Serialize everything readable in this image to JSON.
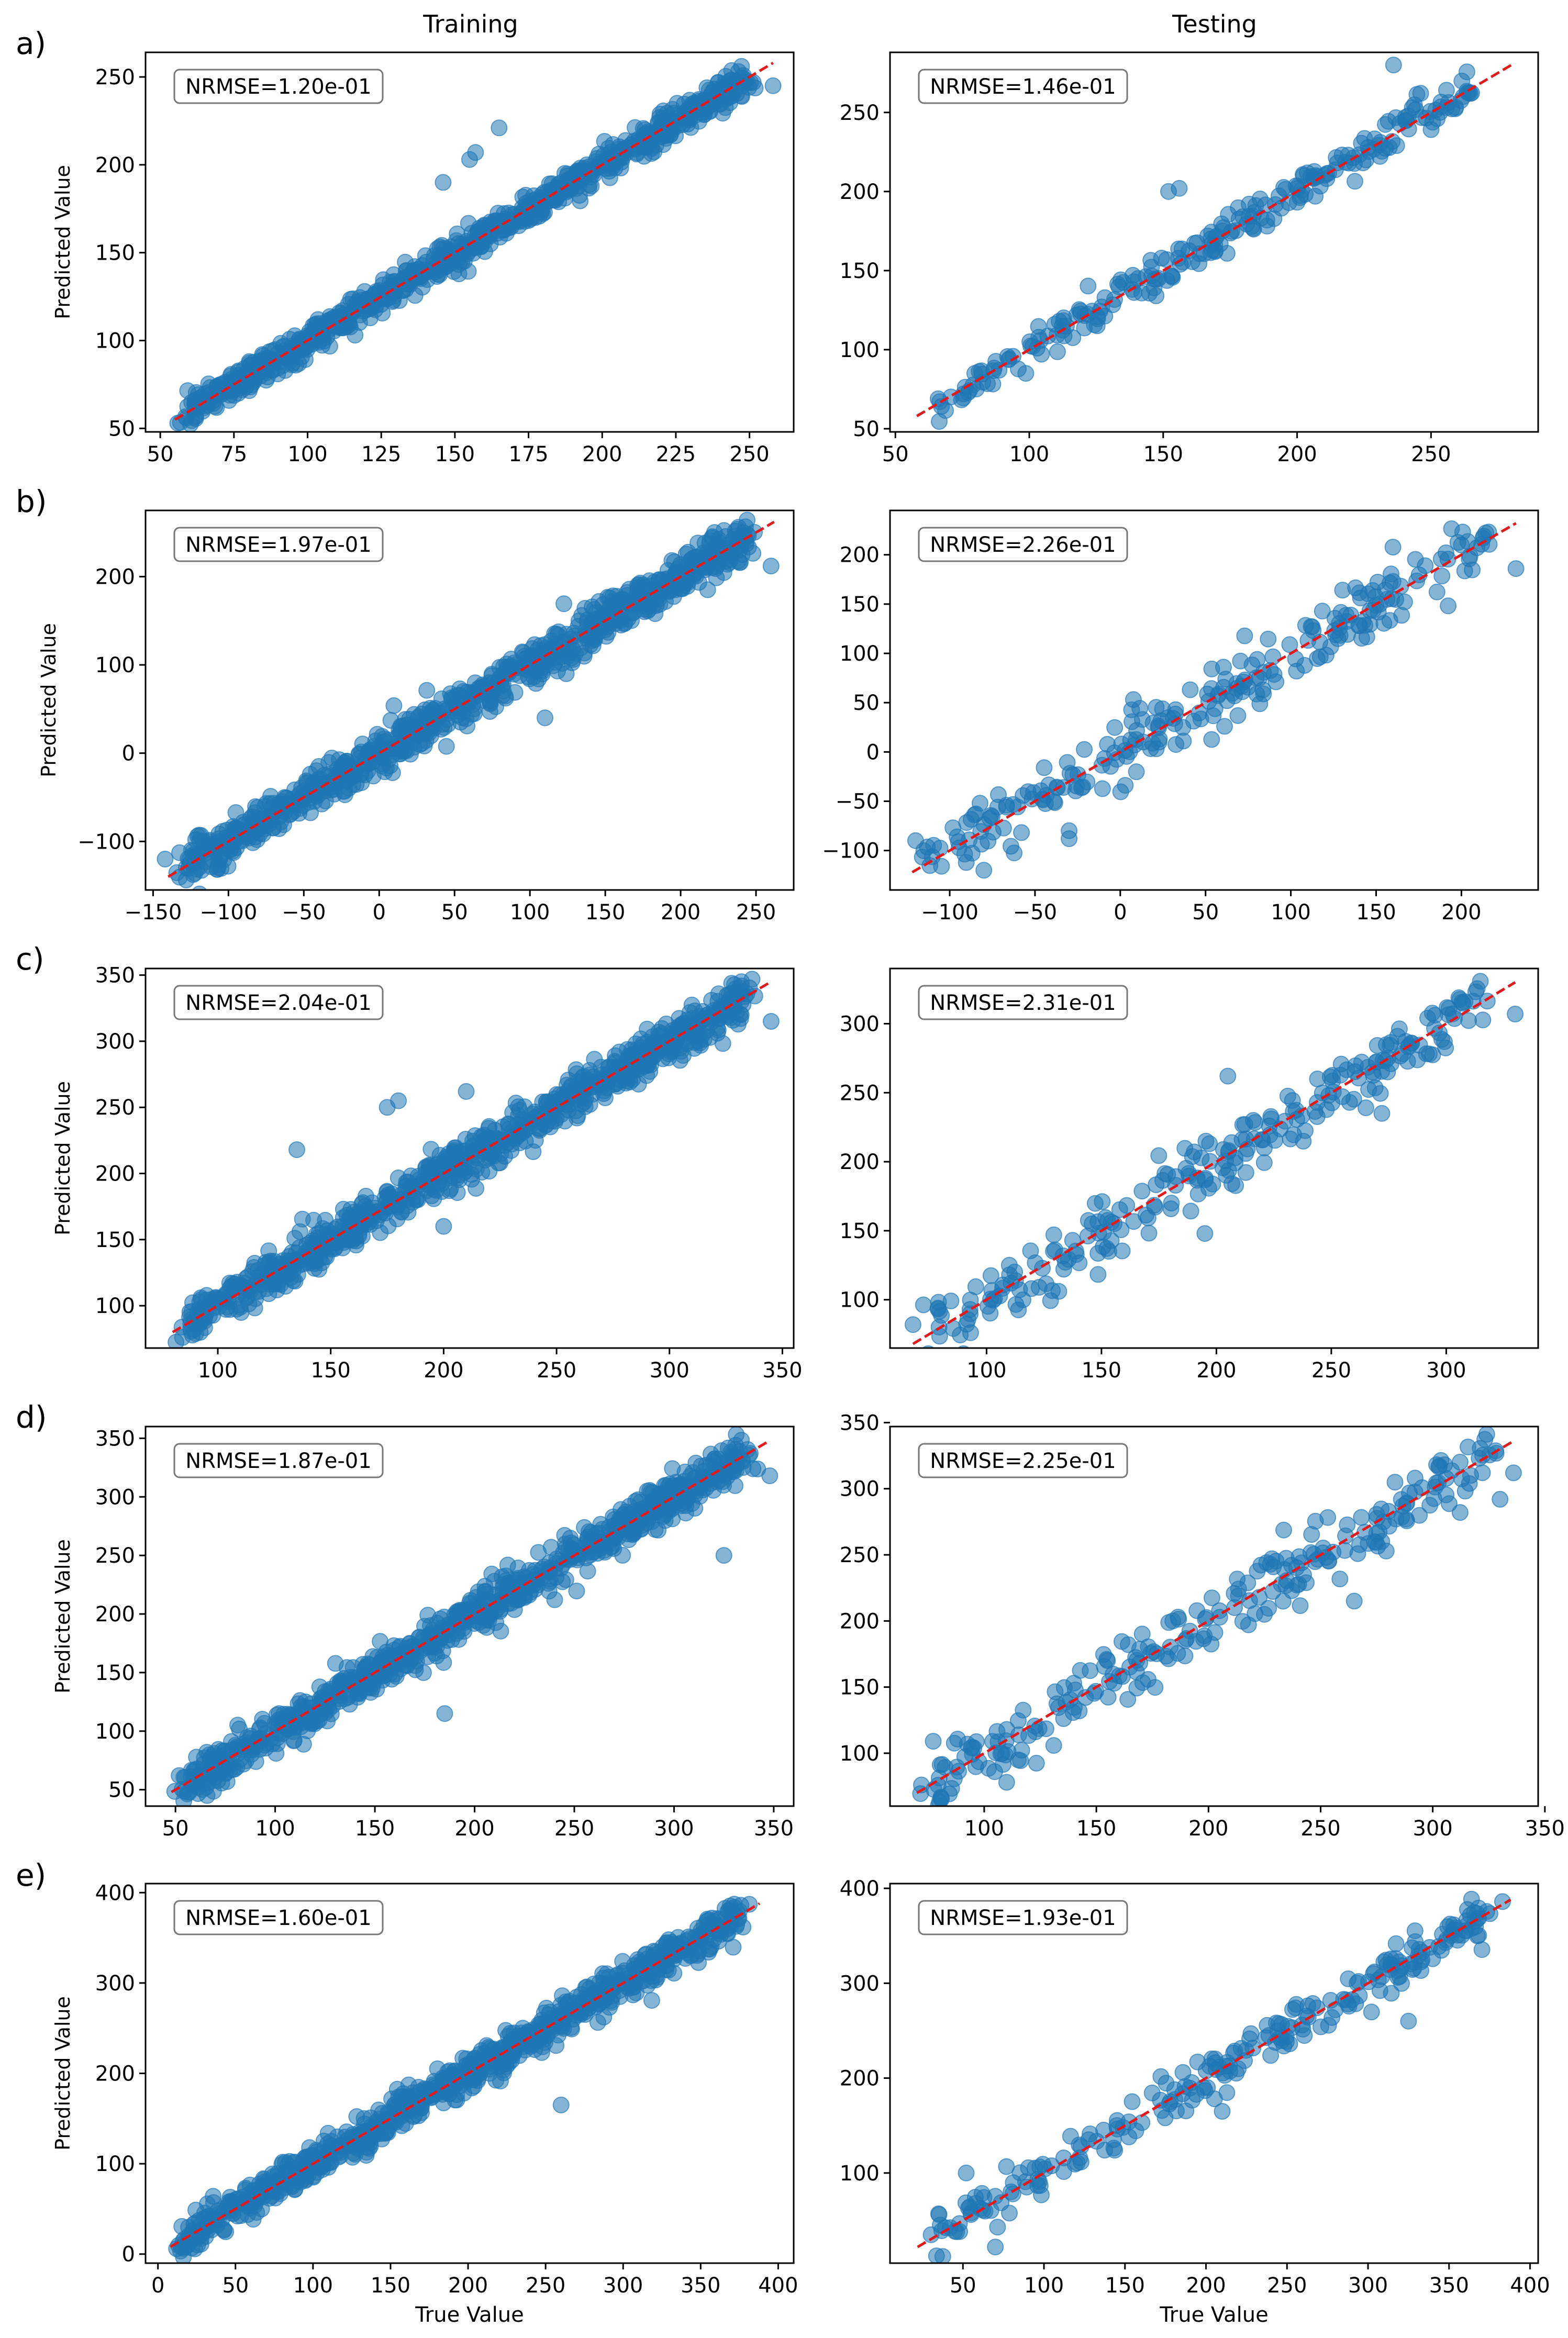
{
  "figure": {
    "column_titles": [
      "Training",
      "Testing"
    ],
    "row_labels": [
      "a)",
      "b)",
      "c)",
      "d)",
      "e)"
    ],
    "ylabel": "Predicted Value",
    "xlabel": "True Value"
  },
  "colors": {
    "point_fill": "#1f77b4",
    "diagonal_line": "#e31a1c",
    "axis": "#000000",
    "background": "#ffffff"
  },
  "chart_data": [
    {
      "type": "scatter",
      "row": "a)",
      "column": "Training",
      "annotation": "NRMSE=1.20e-01",
      "xlim": [
        45,
        265
      ],
      "ylim": [
        48,
        264
      ],
      "xticks": [
        50,
        75,
        100,
        125,
        150,
        175,
        200,
        225,
        250
      ],
      "yticks": [
        50,
        100,
        150,
        200,
        250
      ],
      "diag": [
        55,
        258
      ],
      "n_points": 900,
      "noise": 4.5,
      "outliers": [
        [
          146,
          190
        ],
        [
          155,
          203
        ],
        [
          157,
          207
        ],
        [
          165,
          221
        ],
        [
          258,
          245
        ]
      ],
      "ylabel": "Predicted Value",
      "xlabel": ""
    },
    {
      "type": "scatter",
      "row": "a)",
      "column": "Testing",
      "annotation": "NRMSE=1.46e-01",
      "xlim": [
        48,
        290
      ],
      "ylim": [
        48,
        288
      ],
      "xticks": [
        50,
        100,
        150,
        200,
        250
      ],
      "yticks": [
        50,
        100,
        150,
        200,
        250
      ],
      "diag": [
        58,
        280
      ],
      "n_points": 240,
      "noise": 6,
      "outliers": [
        [
          152,
          200
        ],
        [
          156,
          202
        ],
        [
          236,
          280
        ],
        [
          262,
          260
        ],
        [
          243,
          253
        ]
      ],
      "ylabel": "",
      "xlabel": ""
    },
    {
      "type": "scatter",
      "row": "b)",
      "column": "Training",
      "annotation": "NRMSE=1.97e-01",
      "xlim": [
        -155,
        275
      ],
      "ylim": [
        -155,
        275
      ],
      "xticks": [
        -150,
        -100,
        -50,
        0,
        50,
        100,
        150,
        200,
        250
      ],
      "yticks": [
        -100,
        0,
        100,
        200
      ],
      "diag": [
        -140,
        262
      ],
      "n_points": 900,
      "noise": 12,
      "outliers": [
        [
          -142,
          -120
        ],
        [
          260,
          212
        ],
        [
          110,
          40
        ],
        [
          -40,
          -15
        ]
      ],
      "ylabel": "Predicted Value",
      "xlabel": ""
    },
    {
      "type": "scatter",
      "row": "b)",
      "column": "Testing",
      "annotation": "NRMSE=2.26e-01",
      "xlim": [
        -135,
        245
      ],
      "ylim": [
        -140,
        245
      ],
      "xticks": [
        -100,
        -50,
        0,
        50,
        100,
        150,
        200
      ],
      "yticks": [
        -100,
        -50,
        0,
        50,
        100,
        150,
        200
      ],
      "diag": [
        -122,
        232
      ],
      "n_points": 240,
      "noise": 17,
      "outliers": [
        [
          -120,
          -90
        ],
        [
          -80,
          -120
        ],
        [
          -30,
          -88
        ],
        [
          232,
          186
        ]
      ],
      "ylabel": "",
      "xlabel": ""
    },
    {
      "type": "scatter",
      "row": "c)",
      "column": "Training",
      "annotation": "NRMSE=2.04e-01",
      "xlim": [
        68,
        355
      ],
      "ylim": [
        68,
        355
      ],
      "xticks": [
        100,
        150,
        200,
        250,
        300,
        350
      ],
      "yticks": [
        100,
        150,
        200,
        250,
        300,
        350
      ],
      "diag": [
        80,
        345
      ],
      "n_points": 900,
      "noise": 8,
      "outliers": [
        [
          175,
          250
        ],
        [
          180,
          255
        ],
        [
          210,
          262
        ],
        [
          200,
          160
        ],
        [
          345,
          315
        ],
        [
          135,
          218
        ]
      ],
      "ylabel": "Predicted Value",
      "xlabel": ""
    },
    {
      "type": "scatter",
      "row": "c)",
      "column": "Testing",
      "annotation": "NRMSE=2.31e-01",
      "xlim": [
        58,
        340
      ],
      "ylim": [
        65,
        340
      ],
      "xticks": [
        100,
        150,
        200,
        250,
        300
      ],
      "yticks": [
        100,
        150,
        200,
        250,
        300
      ],
      "diag": [
        68,
        330
      ],
      "n_points": 240,
      "noise": 12,
      "outliers": [
        [
          68,
          82
        ],
        [
          205,
          262
        ],
        [
          272,
          235
        ],
        [
          330,
          307
        ],
        [
          195,
          148
        ]
      ],
      "ylabel": "",
      "xlabel": ""
    },
    {
      "type": "scatter",
      "row": "d)",
      "column": "Training",
      "annotation": "NRMSE=1.87e-01",
      "xlim": [
        35,
        360
      ],
      "ylim": [
        36,
        360
      ],
      "xticks": [
        50,
        100,
        150,
        200,
        250,
        300,
        350
      ],
      "yticks": [
        50,
        100,
        150,
        200,
        250,
        300,
        350
      ],
      "diag": [
        48,
        348
      ],
      "n_points": 900,
      "noise": 9,
      "outliers": [
        [
          57,
          48
        ],
        [
          348,
          318
        ],
        [
          325,
          250
        ],
        [
          185,
          115
        ]
      ],
      "ylabel": "Predicted Value",
      "xlabel": ""
    },
    {
      "type": "scatter",
      "row": "d)",
      "column": "Testing",
      "annotation": "NRMSE=2.25e-01",
      "xlim": [
        58,
        347
      ],
      "ylim": [
        60,
        347
      ],
      "xticks": [
        100,
        150,
        200,
        250,
        300,
        350
      ],
      "yticks": [
        100,
        150,
        200,
        250,
        300,
        350
      ],
      "diag": [
        70,
        336
      ],
      "n_points": 240,
      "noise": 13,
      "outliers": [
        [
          72,
          76
        ],
        [
          336,
          312
        ],
        [
          110,
          78
        ],
        [
          330,
          292
        ],
        [
          265,
          215
        ]
      ],
      "ylabel": "",
      "xlabel": ""
    },
    {
      "type": "scatter",
      "row": "e)",
      "column": "Training",
      "annotation": "NRMSE=1.60e-01",
      "xlim": [
        -8,
        410
      ],
      "ylim": [
        -10,
        410
      ],
      "xticks": [
        0,
        50,
        100,
        150,
        200,
        250,
        300,
        350,
        400
      ],
      "yticks": [
        0,
        100,
        200,
        300,
        400
      ],
      "diag": [
        8,
        388
      ],
      "n_points": 900,
      "noise": 10,
      "outliers": [
        [
          12,
          6
        ],
        [
          376,
          386
        ],
        [
          260,
          165
        ],
        [
          80,
          80
        ]
      ],
      "ylabel": "Predicted Value",
      "xlabel": "True Value"
    },
    {
      "type": "scatter",
      "row": "e)",
      "column": "Testing",
      "annotation": "NRMSE=1.93e-01",
      "xlim": [
        5,
        405
      ],
      "ylim": [
        5,
        405
      ],
      "xticks": [
        50,
        100,
        150,
        200,
        250,
        300,
        350,
        400
      ],
      "yticks": [
        100,
        200,
        300,
        400
      ],
      "diag": [
        22,
        388
      ],
      "n_points": 240,
      "noise": 11,
      "outliers": [
        [
          70,
          22
        ],
        [
          52,
          100
        ],
        [
          383,
          386
        ],
        [
          210,
          165
        ],
        [
          325,
          260
        ]
      ],
      "ylabel": "",
      "xlabel": "True Value"
    }
  ]
}
